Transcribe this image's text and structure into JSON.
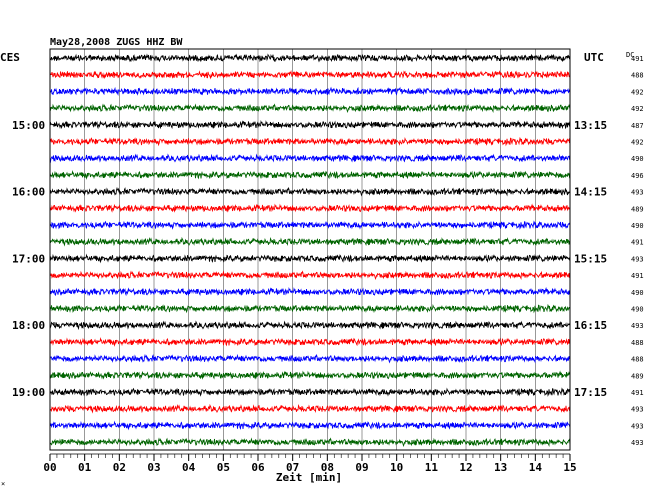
{
  "chart_data": {
    "type": "line",
    "title": "May28,2008  ZUGS HHZ BW",
    "xlabel": "Zeit [min]",
    "xlim": [
      0,
      15
    ],
    "x_ticks": [
      "00",
      "01",
      "02",
      "03",
      "04",
      "05",
      "06",
      "07",
      "08",
      "09",
      "10",
      "11",
      "12",
      "13",
      "14",
      "15"
    ],
    "left_axis_header": "CES",
    "right_axis_header": "UTC",
    "dc_header": "DC",
    "left_hour_labels": [
      "15:00",
      "16:00",
      "17:00",
      "18:00",
      "19:00"
    ],
    "right_hour_labels": [
      "13:15",
      "14:15",
      "15:15",
      "16:15",
      "17:15"
    ],
    "trace_colors": [
      "#000000",
      "#ff0000",
      "#0000ff",
      "#006400"
    ],
    "dc_offsets": [
      "491",
      "488",
      "492",
      "492",
      "487",
      "492",
      "490",
      "496",
      "493",
      "489",
      "490",
      "491",
      "493",
      "491",
      "490",
      "490",
      "493",
      "488",
      "488",
      "489",
      "491",
      "493",
      "493",
      "493"
    ],
    "footnote": "×"
  }
}
